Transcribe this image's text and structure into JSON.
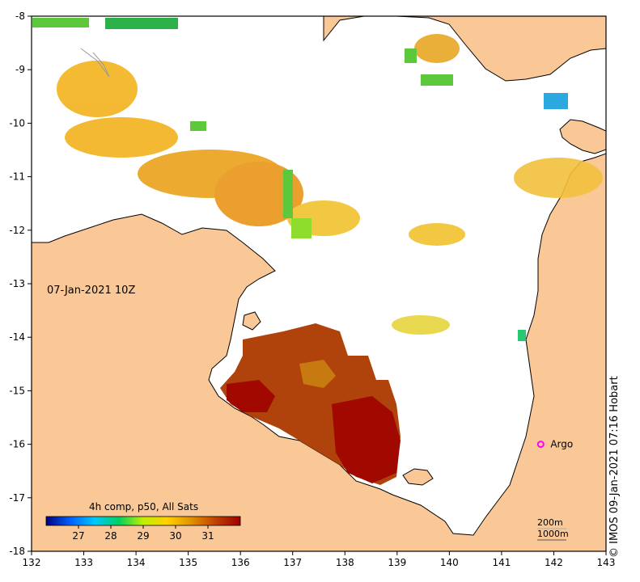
{
  "map": {
    "date_label": "07-Jan-2021 10Z",
    "credit": "© IMOS 09-Jan-2021 07:16 Hobart",
    "x_ticks": [
      "132",
      "133",
      "134",
      "135",
      "136",
      "137",
      "138",
      "139",
      "140",
      "141",
      "142",
      "143"
    ],
    "y_ticks": [
      "-8",
      "-9",
      "-10",
      "-11",
      "-12",
      "-13",
      "-14",
      "-15",
      "-16",
      "-17",
      "-18"
    ],
    "lon_range": [
      132,
      143
    ],
    "lat_range": [
      -18,
      -8
    ],
    "argo": {
      "label": "Argo",
      "lon": 141.75,
      "lat": -16.0,
      "color": "#ff00ff"
    },
    "land_color": "#fac896",
    "sea_color": "#ffffff",
    "contours": {
      "c200": "200m",
      "c1000": "1000m"
    },
    "legend": {
      "title": "4h comp, p50, All Sats",
      "ticks": [
        "27",
        "28",
        "29",
        "30",
        "31"
      ],
      "tick_values": [
        27,
        28,
        29,
        30,
        31
      ],
      "range": [
        26,
        32
      ],
      "colors": [
        "#000080",
        "#0060ff",
        "#00c8ff",
        "#00d060",
        "#c0f000",
        "#ffd000",
        "#e09000",
        "#c04000",
        "#a00000"
      ]
    }
  }
}
